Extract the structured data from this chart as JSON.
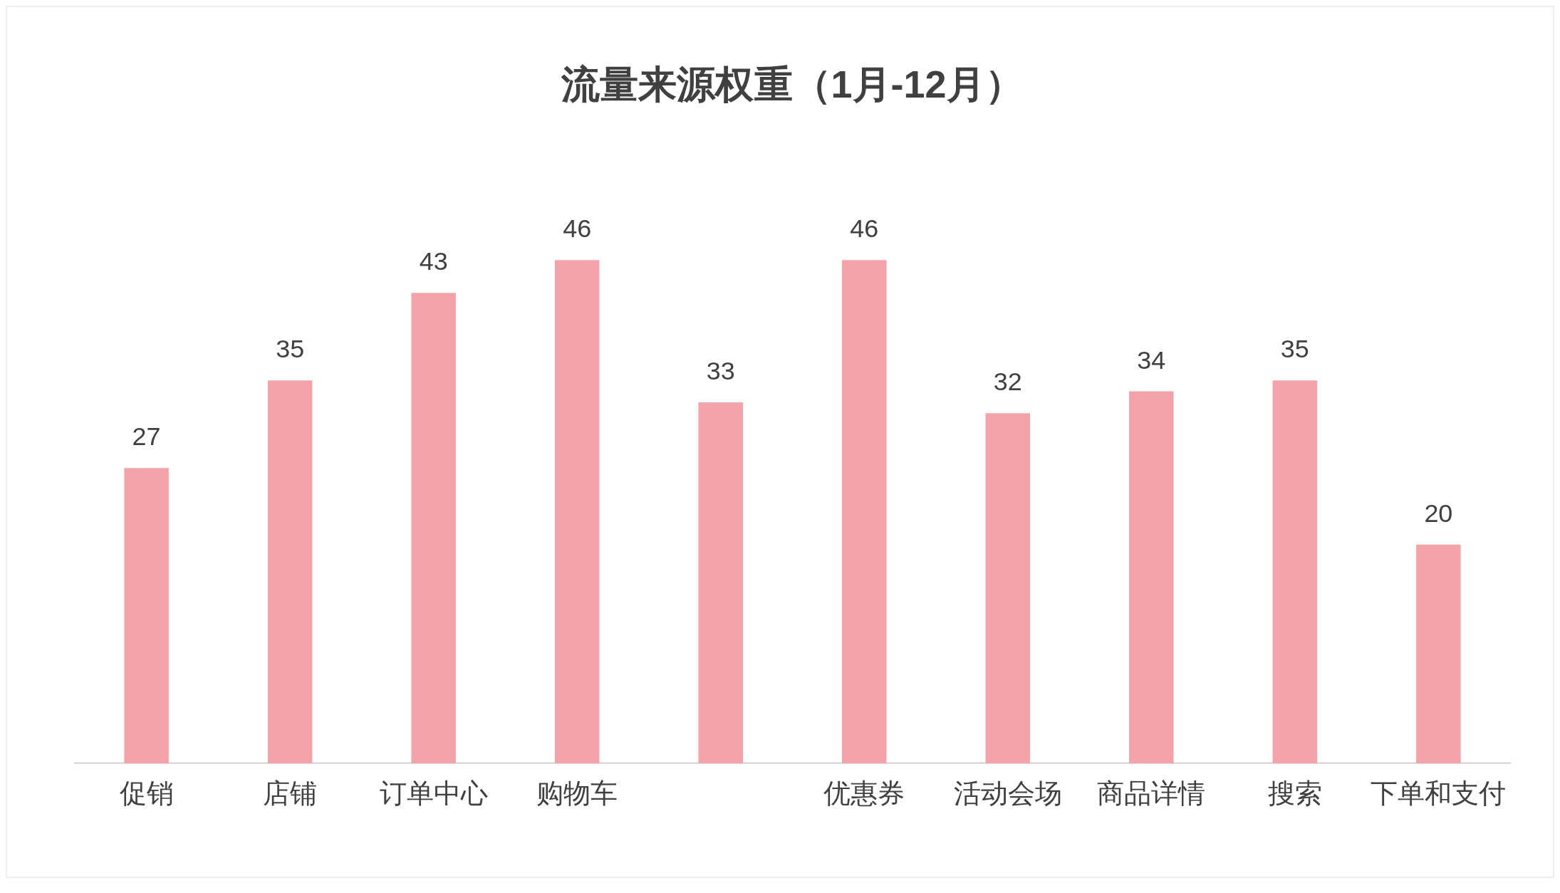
{
  "chart_data": {
    "type": "bar",
    "title": "流量来源权重（1月-12月）",
    "categories": [
      "促销",
      "店铺",
      "订单中心",
      "购物车",
      null,
      "优惠券",
      "活动会场",
      "商品详情",
      "搜索",
      "下单和支付"
    ],
    "values": [
      27,
      35,
      43,
      46,
      33,
      46,
      32,
      34,
      35,
      20
    ],
    "color": "#f4a3a8",
    "data_labels": true,
    "grid": false,
    "legend": false
  }
}
